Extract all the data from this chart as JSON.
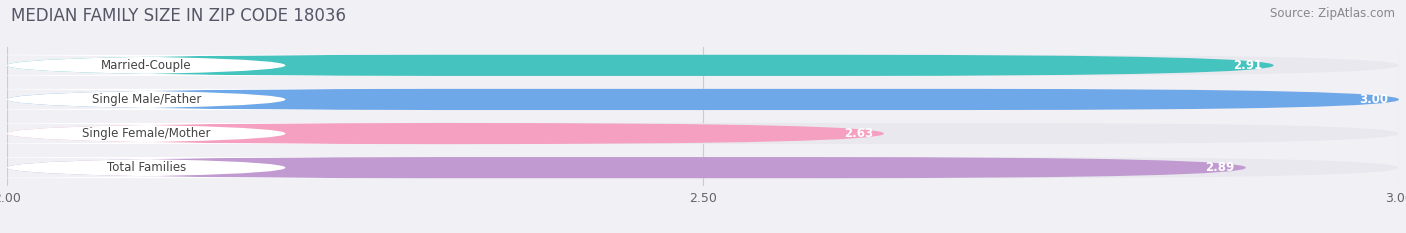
{
  "title": "MEDIAN FAMILY SIZE IN ZIP CODE 18036",
  "source": "Source: ZipAtlas.com",
  "categories": [
    "Married-Couple",
    "Single Male/Father",
    "Single Female/Mother",
    "Total Families"
  ],
  "values": [
    2.91,
    3.0,
    2.63,
    2.89
  ],
  "bar_colors": [
    "#45c3be",
    "#6ea8e8",
    "#f5a0c0",
    "#c09ad0"
  ],
  "track_color": "#e8e8ee",
  "label_bg_color": "#ffffff",
  "xmin": 2.0,
  "xmax": 3.0,
  "xticks": [
    2.0,
    2.5,
    3.0
  ],
  "xtick_labels": [
    "2.00",
    "2.50",
    "3.00"
  ],
  "background_color": "#f0f0f5",
  "bar_height": 0.62,
  "title_fontsize": 12,
  "source_fontsize": 8.5,
  "label_fontsize": 8.5,
  "value_fontsize": 8.5,
  "tick_fontsize": 9
}
